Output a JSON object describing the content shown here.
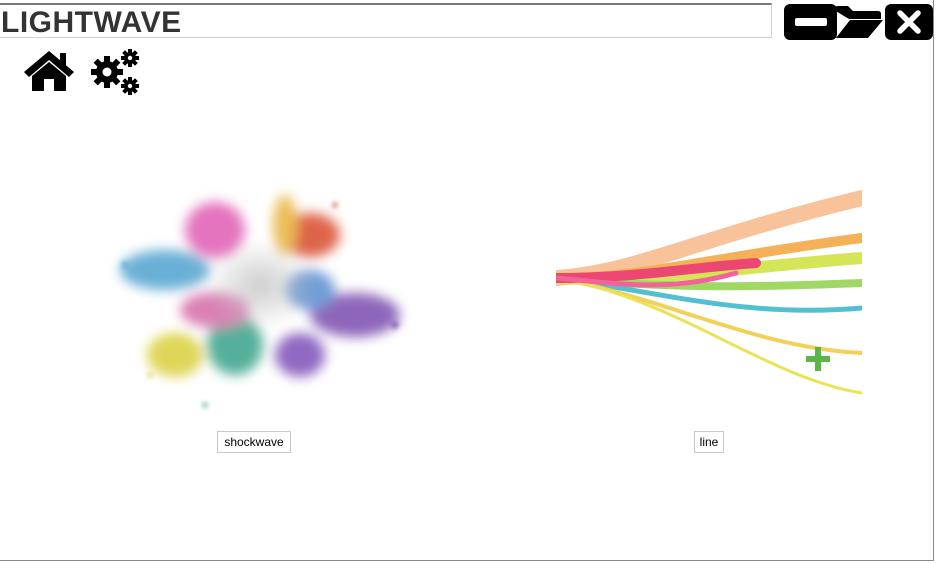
{
  "window": {
    "title": "LIGHTWAVE",
    "controls": [
      "minimize-icon",
      "folder-icon",
      "close-icon"
    ]
  },
  "toolbar": {
    "icons": [
      "home-icon",
      "gears-icon"
    ]
  },
  "gallery": {
    "items": [
      {
        "label": "shockwave",
        "image": "color-powder-explosion"
      },
      {
        "label": "line",
        "image": "rainbow-light-lines"
      }
    ]
  }
}
